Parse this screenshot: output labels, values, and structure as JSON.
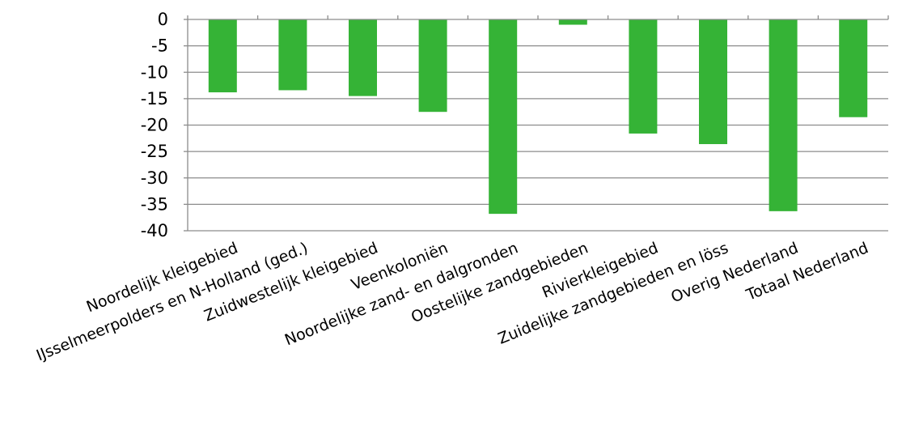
{
  "chart_data": {
    "type": "bar",
    "categories": [
      "Noordelijk kleigebied",
      "IJsselmeerpolders en N-Holland (ged.)",
      "Zuidwestelijk kleigebied",
      "Veenkoloniën",
      "Noordelijke zand- en dalgronden",
      "Oostelijke zandgebieden",
      "Rivierkleigebied",
      "Zuidelijke zandgebieden en löss",
      "Overig Nederland",
      "Totaal Nederland"
    ],
    "values": [
      -13.8,
      -13.4,
      -14.5,
      -17.5,
      -36.8,
      -1.0,
      -21.6,
      -23.6,
      -36.3,
      -18.5
    ],
    "ylim": [
      -40,
      0
    ],
    "yticks": [
      "0",
      "-5",
      "-10",
      "-15",
      "-20",
      "-25",
      "-30",
      "-35",
      "-40"
    ],
    "grid": true,
    "bar_color": "#35b336",
    "grid_color": "#8c8c8c"
  }
}
